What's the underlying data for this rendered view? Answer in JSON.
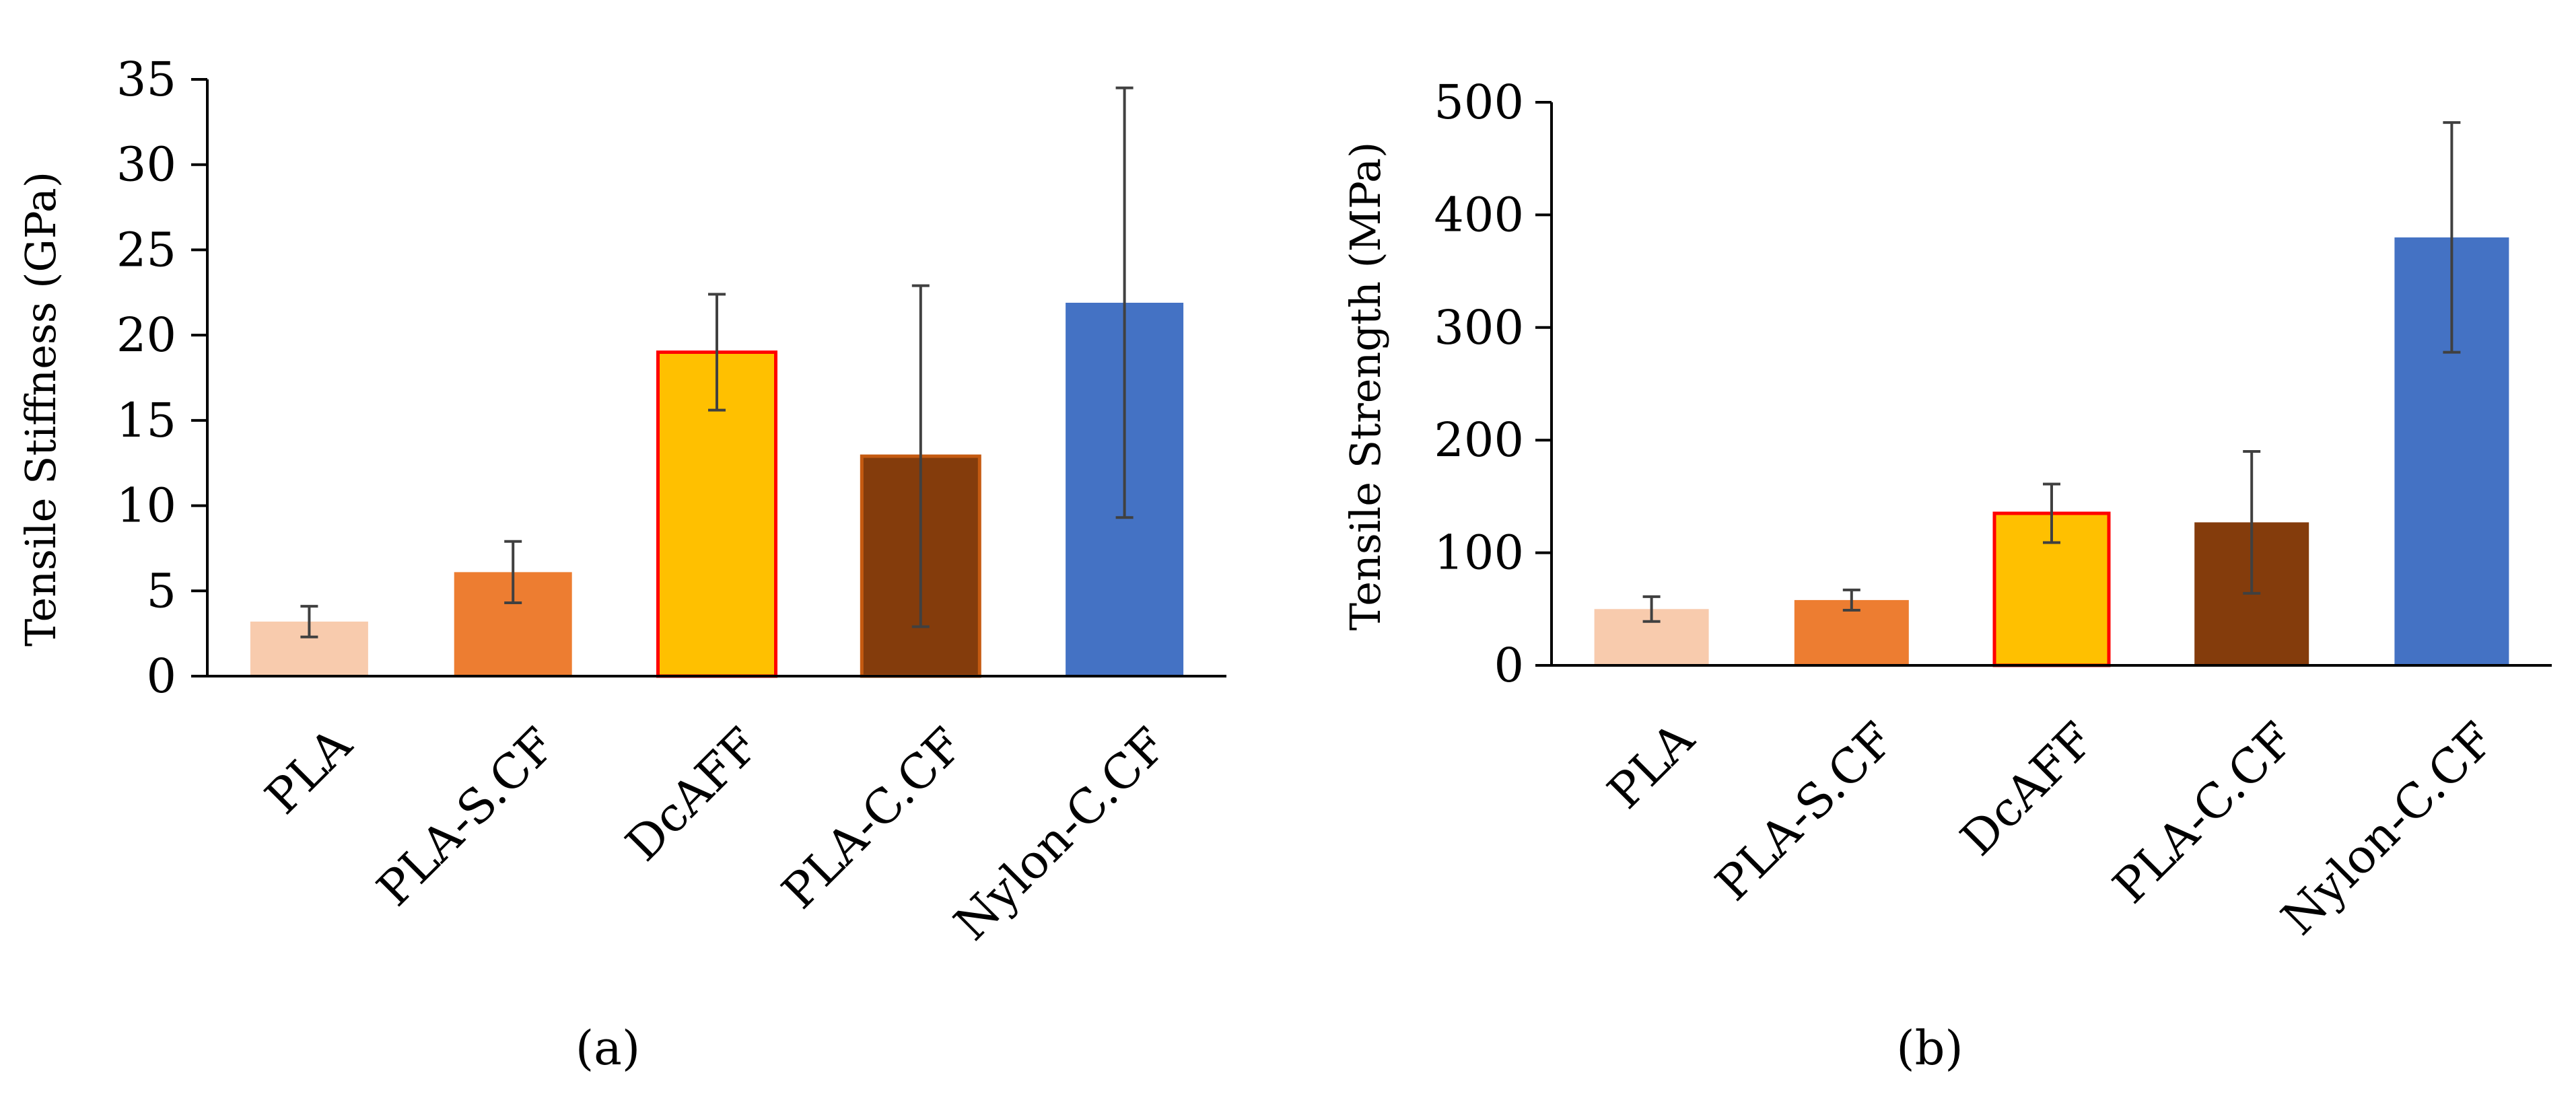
{
  "chart_data": [
    {
      "panel": "a",
      "type": "bar",
      "title": "",
      "xlabel": "",
      "ylabel": "Tensile Stiffness (GPa)",
      "ylim": [
        0,
        35
      ],
      "yticks": [
        0,
        5,
        10,
        15,
        20,
        25,
        30,
        35
      ],
      "grid": false,
      "legend": "none",
      "categories": [
        "PLA",
        "PLA-S.CF",
        "DcAFF",
        "PLA-C.CF",
        "Nylon-C.CF"
      ],
      "values": [
        3.2,
        6.1,
        19.0,
        12.9,
        21.9
      ],
      "errors": [
        0.9,
        1.8,
        3.4,
        10.0,
        12.6
      ],
      "colors": [
        "#F8CBAD",
        "#ED7D31",
        "#FFC000",
        "#843C0C",
        "#4472C4"
      ],
      "outline_colors": [
        "none",
        "none",
        "#FF0000",
        "#C55A11",
        "none"
      ],
      "caption": "(a)"
    },
    {
      "panel": "b",
      "type": "bar",
      "title": "",
      "xlabel": "",
      "ylabel": "Tensile Strength (MPa)",
      "ylim": [
        0,
        500
      ],
      "yticks": [
        0,
        100,
        200,
        300,
        400,
        500
      ],
      "grid": false,
      "legend": "none",
      "categories": [
        "PLA",
        "PLA-S.CF",
        "DcAFF",
        "PLA-C.CF",
        "Nylon-C.CF"
      ],
      "values": [
        50,
        58,
        135,
        127,
        380
      ],
      "errors": [
        11,
        9,
        26,
        63,
        102
      ],
      "colors": [
        "#F8CBAD",
        "#ED7D31",
        "#FFC000",
        "#843C0C",
        "#4472C4"
      ],
      "outline_colors": [
        "none",
        "none",
        "#FF0000",
        "none",
        "none"
      ],
      "caption": "(b)"
    }
  ]
}
